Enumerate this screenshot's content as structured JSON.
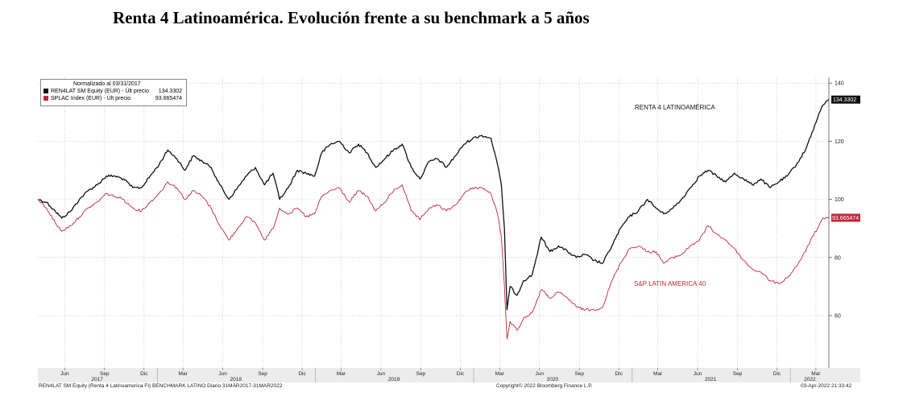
{
  "page_title": "Renta 4 Latinoamérica. Evolución frente a su benchmark a 5 años",
  "legend": {
    "title": "Normalizado al 03/31/2017",
    "entries": [
      {
        "label": "REN4LAT SM Equity (EUR) - Últ precio",
        "value": "134.3302",
        "color": "#111111"
      },
      {
        "label": "SPLAC Index (EUR) - Últ precio",
        "value": "93.665474",
        "color": "#c0263a"
      }
    ]
  },
  "annotations": {
    "fund": "RENTA 4 LATINOAMÉRICA",
    "bench": "S&P LATIN AMERICA 40"
  },
  "last_value_tags": {
    "fund": "134.3302",
    "bench": "93.665474"
  },
  "footer": {
    "left": "REN4LAT SM Equity (Renta 4 Latinoamerica FI) BENCHMARK LATINO  Diario 31MAR2017-31MAR2022",
    "center": "Copyright© 2022 Bloomberg Finance L.P.",
    "right": "03-Apr-2022 21:33:42"
  },
  "chart_data": {
    "type": "line",
    "title": "",
    "x_range": [
      "2017-03-31",
      "2022-03-31"
    ],
    "ylim": [
      42,
      142
    ],
    "y_ticks": [
      60,
      80,
      100,
      120,
      140
    ],
    "month_ticks": [
      {
        "label": "Jun",
        "date": "2017-06-01"
      },
      {
        "label": "Sep",
        "date": "2017-09-01"
      },
      {
        "label": "Dic",
        "date": "2017-12-01"
      },
      {
        "label": "Mar",
        "date": "2018-03-01"
      },
      {
        "label": "Jun",
        "date": "2018-06-01"
      },
      {
        "label": "Sep",
        "date": "2018-09-01"
      },
      {
        "label": "Dic",
        "date": "2018-12-01"
      },
      {
        "label": "Mar",
        "date": "2019-03-01"
      },
      {
        "label": "Jun",
        "date": "2019-06-01"
      },
      {
        "label": "Sep",
        "date": "2019-09-01"
      },
      {
        "label": "Dic",
        "date": "2019-12-01"
      },
      {
        "label": "Mar",
        "date": "2020-03-01"
      },
      {
        "label": "Jun",
        "date": "2020-06-01"
      },
      {
        "label": "Sep",
        "date": "2020-09-01"
      },
      {
        "label": "Dic",
        "date": "2020-12-01"
      },
      {
        "label": "Mar",
        "date": "2021-03-01"
      },
      {
        "label": "Jun",
        "date": "2021-06-01"
      },
      {
        "label": "Sep",
        "date": "2021-09-01"
      },
      {
        "label": "Dic",
        "date": "2021-12-01"
      },
      {
        "label": "Mar",
        "date": "2022-03-01"
      }
    ],
    "year_labels": [
      {
        "label": "2017",
        "date": "2017-08-15"
      },
      {
        "label": "2018",
        "date": "2018-07-01"
      },
      {
        "label": "2019",
        "date": "2019-07-01"
      },
      {
        "label": "2020",
        "date": "2020-07-01"
      },
      {
        "label": "2021",
        "date": "2021-07-01"
      },
      {
        "label": "2022",
        "date": "2022-02-15"
      }
    ],
    "year_dividers": [
      "2018-01-01",
      "2019-01-01",
      "2020-01-01",
      "2021-01-01",
      "2022-01-01"
    ],
    "grid": true,
    "legend_position": "top-left",
    "series": [
      {
        "name": "REN4LAT SM Equity (EUR) - Últ precio",
        "color": "#111111",
        "points": [
          [
            "2017-03-31",
            100
          ],
          [
            "2017-04-20",
            99
          ],
          [
            "2017-05-10",
            96
          ],
          [
            "2017-05-25",
            93.5
          ],
          [
            "2017-06-15",
            96
          ],
          [
            "2017-07-05",
            100
          ],
          [
            "2017-07-25",
            103
          ],
          [
            "2017-08-15",
            105
          ],
          [
            "2017-09-05",
            108
          ],
          [
            "2017-09-25",
            108
          ],
          [
            "2017-10-15",
            107
          ],
          [
            "2017-11-05",
            104
          ],
          [
            "2017-11-25",
            104
          ],
          [
            "2017-12-15",
            108
          ],
          [
            "2018-01-05",
            112
          ],
          [
            "2018-01-25",
            117
          ],
          [
            "2018-02-15",
            114
          ],
          [
            "2018-03-05",
            110
          ],
          [
            "2018-03-25",
            115
          ],
          [
            "2018-04-15",
            113
          ],
          [
            "2018-05-05",
            111
          ],
          [
            "2018-05-25",
            105
          ],
          [
            "2018-06-15",
            100
          ],
          [
            "2018-07-05",
            104
          ],
          [
            "2018-07-25",
            108
          ],
          [
            "2018-08-15",
            111
          ],
          [
            "2018-09-05",
            105
          ],
          [
            "2018-09-25",
            109
          ],
          [
            "2018-10-10",
            100
          ],
          [
            "2018-10-30",
            104
          ],
          [
            "2018-11-20",
            110
          ],
          [
            "2018-12-10",
            109
          ],
          [
            "2018-12-30",
            108
          ],
          [
            "2019-01-15",
            116
          ],
          [
            "2019-02-05",
            119
          ],
          [
            "2019-02-25",
            120
          ],
          [
            "2019-03-20",
            116
          ],
          [
            "2019-04-10",
            119
          ],
          [
            "2019-04-30",
            116
          ],
          [
            "2019-05-20",
            111
          ],
          [
            "2019-06-10",
            114
          ],
          [
            "2019-06-30",
            117
          ],
          [
            "2019-07-20",
            119
          ],
          [
            "2019-08-10",
            111
          ],
          [
            "2019-08-30",
            107
          ],
          [
            "2019-09-20",
            113
          ],
          [
            "2019-10-10",
            114
          ],
          [
            "2019-10-30",
            111
          ],
          [
            "2019-11-20",
            115
          ],
          [
            "2019-12-10",
            119
          ],
          [
            "2019-12-30",
            121
          ],
          [
            "2020-01-20",
            122
          ],
          [
            "2020-02-10",
            121
          ],
          [
            "2020-02-25",
            112
          ],
          [
            "2020-03-05",
            105
          ],
          [
            "2020-03-12",
            90
          ],
          [
            "2020-03-18",
            62
          ],
          [
            "2020-03-25",
            70
          ],
          [
            "2020-04-10",
            67
          ],
          [
            "2020-04-25",
            72
          ],
          [
            "2020-05-15",
            74
          ],
          [
            "2020-06-05",
            87
          ],
          [
            "2020-06-25",
            82
          ],
          [
            "2020-07-15",
            84
          ],
          [
            "2020-08-05",
            82
          ],
          [
            "2020-08-25",
            80
          ],
          [
            "2020-09-15",
            81
          ],
          [
            "2020-10-05",
            79
          ],
          [
            "2020-10-25",
            78
          ],
          [
            "2020-11-15",
            84
          ],
          [
            "2020-12-05",
            90
          ],
          [
            "2020-12-25",
            94
          ],
          [
            "2021-01-15",
            96
          ],
          [
            "2021-02-05",
            100
          ],
          [
            "2021-02-25",
            97
          ],
          [
            "2021-03-15",
            95
          ],
          [
            "2021-04-05",
            97
          ],
          [
            "2021-04-25",
            100
          ],
          [
            "2021-05-15",
            104
          ],
          [
            "2021-06-05",
            108
          ],
          [
            "2021-06-25",
            110
          ],
          [
            "2021-07-15",
            108
          ],
          [
            "2021-08-05",
            106
          ],
          [
            "2021-08-25",
            109
          ],
          [
            "2021-09-15",
            107
          ],
          [
            "2021-10-05",
            105
          ],
          [
            "2021-10-25",
            107
          ],
          [
            "2021-11-15",
            104
          ],
          [
            "2021-12-05",
            106
          ],
          [
            "2021-12-25",
            108
          ],
          [
            "2022-01-15",
            112
          ],
          [
            "2022-02-05",
            117
          ],
          [
            "2022-02-20",
            123
          ],
          [
            "2022-03-05",
            128
          ],
          [
            "2022-03-15",
            132
          ],
          [
            "2022-03-31",
            134.33
          ]
        ]
      },
      {
        "name": "SPLAC Index (EUR) - Últ precio",
        "color": "#c0263a",
        "points": [
          [
            "2017-03-31",
            100
          ],
          [
            "2017-04-20",
            97
          ],
          [
            "2017-05-10",
            92
          ],
          [
            "2017-05-25",
            89
          ],
          [
            "2017-06-15",
            91
          ],
          [
            "2017-07-05",
            94
          ],
          [
            "2017-07-25",
            97
          ],
          [
            "2017-08-15",
            99
          ],
          [
            "2017-09-05",
            102
          ],
          [
            "2017-09-25",
            101
          ],
          [
            "2017-10-15",
            100
          ],
          [
            "2017-11-05",
            97
          ],
          [
            "2017-11-25",
            96
          ],
          [
            "2017-12-15",
            99
          ],
          [
            "2018-01-05",
            102
          ],
          [
            "2018-01-25",
            106
          ],
          [
            "2018-02-15",
            104
          ],
          [
            "2018-03-05",
            100
          ],
          [
            "2018-03-25",
            103
          ],
          [
            "2018-04-15",
            101
          ],
          [
            "2018-05-05",
            97
          ],
          [
            "2018-05-25",
            91
          ],
          [
            "2018-06-15",
            86
          ],
          [
            "2018-07-05",
            90
          ],
          [
            "2018-07-25",
            94
          ],
          [
            "2018-08-15",
            92
          ],
          [
            "2018-09-05",
            86
          ],
          [
            "2018-09-25",
            90
          ],
          [
            "2018-10-10",
            97
          ],
          [
            "2018-10-30",
            95
          ],
          [
            "2018-11-20",
            97
          ],
          [
            "2018-12-10",
            94
          ],
          [
            "2018-12-30",
            95
          ],
          [
            "2019-01-15",
            101
          ],
          [
            "2019-02-05",
            103
          ],
          [
            "2019-02-25",
            104
          ],
          [
            "2019-03-20",
            99
          ],
          [
            "2019-04-10",
            103
          ],
          [
            "2019-04-30",
            101
          ],
          [
            "2019-05-20",
            96
          ],
          [
            "2019-06-10",
            99
          ],
          [
            "2019-06-30",
            103
          ],
          [
            "2019-07-20",
            105
          ],
          [
            "2019-08-10",
            96
          ],
          [
            "2019-08-30",
            93
          ],
          [
            "2019-09-20",
            97
          ],
          [
            "2019-10-10",
            98
          ],
          [
            "2019-10-30",
            96
          ],
          [
            "2019-11-20",
            98
          ],
          [
            "2019-12-10",
            102
          ],
          [
            "2019-12-30",
            104
          ],
          [
            "2020-01-20",
            104
          ],
          [
            "2020-02-10",
            102
          ],
          [
            "2020-02-25",
            95
          ],
          [
            "2020-03-05",
            87
          ],
          [
            "2020-03-12",
            70
          ],
          [
            "2020-03-18",
            52
          ],
          [
            "2020-03-25",
            58
          ],
          [
            "2020-04-10",
            55
          ],
          [
            "2020-04-25",
            59
          ],
          [
            "2020-05-15",
            61
          ],
          [
            "2020-06-05",
            69
          ],
          [
            "2020-06-25",
            66
          ],
          [
            "2020-07-15",
            68
          ],
          [
            "2020-08-05",
            66
          ],
          [
            "2020-08-25",
            63
          ],
          [
            "2020-09-15",
            62
          ],
          [
            "2020-10-05",
            62
          ],
          [
            "2020-10-25",
            63
          ],
          [
            "2020-11-15",
            72
          ],
          [
            "2020-12-05",
            78
          ],
          [
            "2020-12-25",
            83
          ],
          [
            "2021-01-15",
            84
          ],
          [
            "2021-02-05",
            82
          ],
          [
            "2021-02-25",
            82
          ],
          [
            "2021-03-15",
            78
          ],
          [
            "2021-04-05",
            80
          ],
          [
            "2021-04-25",
            81
          ],
          [
            "2021-05-15",
            84
          ],
          [
            "2021-06-05",
            86
          ],
          [
            "2021-06-25",
            91
          ],
          [
            "2021-07-15",
            88
          ],
          [
            "2021-08-05",
            86
          ],
          [
            "2021-08-25",
            83
          ],
          [
            "2021-09-15",
            79
          ],
          [
            "2021-10-05",
            76
          ],
          [
            "2021-10-25",
            75
          ],
          [
            "2021-11-15",
            72
          ],
          [
            "2021-12-05",
            71
          ],
          [
            "2021-12-25",
            73
          ],
          [
            "2022-01-15",
            77
          ],
          [
            "2022-02-05",
            82
          ],
          [
            "2022-02-20",
            87
          ],
          [
            "2022-03-05",
            90
          ],
          [
            "2022-03-15",
            93
          ],
          [
            "2022-03-31",
            93.67
          ]
        ]
      }
    ]
  }
}
